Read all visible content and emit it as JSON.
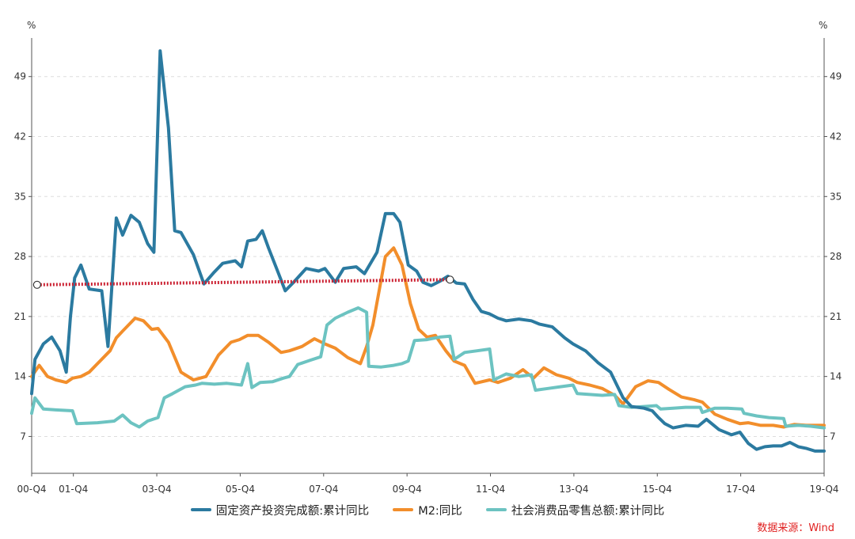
{
  "chart_data": {
    "type": "line",
    "unit_label_left": "%",
    "unit_label_right": "%",
    "x_tick_labels": [
      "00-Q4",
      "01-Q4",
      "03-Q4",
      "05-Q4",
      "07-Q4",
      "09-Q4",
      "11-Q4",
      "13-Q4",
      "15-Q4",
      "17-Q4",
      "19-Q4"
    ],
    "x_tick_dates": [
      2000.92,
      2001.92,
      2003.92,
      2005.92,
      2007.92,
      2009.92,
      2011.92,
      2013.92,
      2015.92,
      2017.92,
      2019.92
    ],
    "xlim": [
      2000.92,
      2019.92
    ],
    "ylim": [
      2.7,
      53.5
    ],
    "y_ticks": [
      7,
      14,
      21,
      28,
      35,
      42,
      49
    ],
    "grid": "horizontal dashed",
    "legend_position": "bottom",
    "source_note": "数据来源：Wind",
    "series": [
      {
        "name": "固定资产投资完成额:累计同比",
        "color": "#2b7aa0",
        "points": [
          [
            2000.92,
            12
          ],
          [
            2001.0,
            16
          ],
          [
            2001.2,
            17.8
          ],
          [
            2001.4,
            18.6
          ],
          [
            2001.6,
            17
          ],
          [
            2001.75,
            14.5
          ],
          [
            2001.85,
            21
          ],
          [
            2001.95,
            25.5
          ],
          [
            2002.1,
            27
          ],
          [
            2002.3,
            24.2
          ],
          [
            2002.6,
            24
          ],
          [
            2002.75,
            17.5
          ],
          [
            2002.95,
            32.5
          ],
          [
            2003.1,
            30.5
          ],
          [
            2003.3,
            32.8
          ],
          [
            2003.5,
            32
          ],
          [
            2003.7,
            29.5
          ],
          [
            2003.85,
            28.5
          ],
          [
            2004.0,
            52
          ],
          [
            2004.2,
            43
          ],
          [
            2004.35,
            31
          ],
          [
            2004.5,
            30.8
          ],
          [
            2004.8,
            28.2
          ],
          [
            2005.05,
            24.8
          ],
          [
            2005.3,
            26.2
          ],
          [
            2005.5,
            27.2
          ],
          [
            2005.8,
            27.5
          ],
          [
            2005.95,
            26.8
          ],
          [
            2006.1,
            29.8
          ],
          [
            2006.3,
            30
          ],
          [
            2006.45,
            31
          ],
          [
            2006.6,
            29
          ],
          [
            2006.8,
            26.5
          ],
          [
            2007.0,
            24
          ],
          [
            2007.2,
            25
          ],
          [
            2007.5,
            26.6
          ],
          [
            2007.8,
            26.3
          ],
          [
            2007.95,
            26.6
          ],
          [
            2008.2,
            25
          ],
          [
            2008.4,
            26.6
          ],
          [
            2008.7,
            26.8
          ],
          [
            2008.9,
            26
          ],
          [
            2009.2,
            28.5
          ],
          [
            2009.4,
            33
          ],
          [
            2009.6,
            33
          ],
          [
            2009.75,
            32
          ],
          [
            2009.95,
            27
          ],
          [
            2010.15,
            26.3
          ],
          [
            2010.3,
            25
          ],
          [
            2010.5,
            24.6
          ],
          [
            2010.7,
            25.1
          ],
          [
            2010.9,
            25.7
          ],
          [
            2011.1,
            24.9
          ],
          [
            2011.3,
            24.8
          ],
          [
            2011.5,
            23
          ],
          [
            2011.7,
            21.6
          ],
          [
            2011.9,
            21.3
          ],
          [
            2012.1,
            20.8
          ],
          [
            2012.3,
            20.5
          ],
          [
            2012.6,
            20.7
          ],
          [
            2012.9,
            20.5
          ],
          [
            2013.1,
            20.1
          ],
          [
            2013.4,
            19.8
          ],
          [
            2013.7,
            18.5
          ],
          [
            2013.9,
            17.8
          ],
          [
            2014.2,
            17
          ],
          [
            2014.5,
            15.6
          ],
          [
            2014.8,
            14.5
          ],
          [
            2015.1,
            11.5
          ],
          [
            2015.3,
            10.5
          ],
          [
            2015.6,
            10.3
          ],
          [
            2015.8,
            10
          ],
          [
            2015.95,
            9.2
          ],
          [
            2016.1,
            8.5
          ],
          [
            2016.3,
            8
          ],
          [
            2016.6,
            8.3
          ],
          [
            2016.9,
            8.2
          ],
          [
            2017.1,
            9
          ],
          [
            2017.4,
            7.8
          ],
          [
            2017.7,
            7.2
          ],
          [
            2017.9,
            7.5
          ],
          [
            2018.1,
            6.2
          ],
          [
            2018.3,
            5.5
          ],
          [
            2018.5,
            5.8
          ],
          [
            2018.7,
            5.9
          ],
          [
            2018.9,
            5.9
          ],
          [
            2019.1,
            6.3
          ],
          [
            2019.3,
            5.8
          ],
          [
            2019.5,
            5.6
          ],
          [
            2019.7,
            5.3
          ],
          [
            2019.92,
            5.3
          ]
        ]
      },
      {
        "name": "M2:同比",
        "color": "#f28e2b",
        "points": [
          [
            2000.92,
            14
          ],
          [
            2001.1,
            15.3
          ],
          [
            2001.3,
            14
          ],
          [
            2001.5,
            13.6
          ],
          [
            2001.75,
            13.3
          ],
          [
            2001.9,
            13.8
          ],
          [
            2002.1,
            14
          ],
          [
            2002.3,
            14.5
          ],
          [
            2002.5,
            15.5
          ],
          [
            2002.8,
            17
          ],
          [
            2002.95,
            18.5
          ],
          [
            2003.1,
            19.3
          ],
          [
            2003.4,
            20.8
          ],
          [
            2003.6,
            20.5
          ],
          [
            2003.8,
            19.5
          ],
          [
            2003.95,
            19.6
          ],
          [
            2004.2,
            18
          ],
          [
            2004.5,
            14.5
          ],
          [
            2004.8,
            13.6
          ],
          [
            2005.1,
            14
          ],
          [
            2005.4,
            16.5
          ],
          [
            2005.7,
            18
          ],
          [
            2005.9,
            18.3
          ],
          [
            2006.1,
            18.8
          ],
          [
            2006.35,
            18.8
          ],
          [
            2006.6,
            18
          ],
          [
            2006.9,
            16.8
          ],
          [
            2007.1,
            17
          ],
          [
            2007.4,
            17.5
          ],
          [
            2007.7,
            18.4
          ],
          [
            2007.95,
            17.8
          ],
          [
            2008.2,
            17.3
          ],
          [
            2008.5,
            16.2
          ],
          [
            2008.8,
            15.5
          ],
          [
            2008.95,
            17.5
          ],
          [
            2009.1,
            20
          ],
          [
            2009.4,
            28
          ],
          [
            2009.6,
            29
          ],
          [
            2009.8,
            27
          ],
          [
            2010.0,
            22.5
          ],
          [
            2010.2,
            19.5
          ],
          [
            2010.4,
            18.6
          ],
          [
            2010.6,
            18.8
          ],
          [
            2010.85,
            17
          ],
          [
            2011.05,
            15.8
          ],
          [
            2011.3,
            15.3
          ],
          [
            2011.55,
            13.2
          ],
          [
            2011.9,
            13.6
          ],
          [
            2012.1,
            13.3
          ],
          [
            2012.4,
            13.8
          ],
          [
            2012.7,
            14.8
          ],
          [
            2012.95,
            13.8
          ],
          [
            2013.2,
            15
          ],
          [
            2013.5,
            14.2
          ],
          [
            2013.8,
            13.8
          ],
          [
            2014.0,
            13.3
          ],
          [
            2014.3,
            13
          ],
          [
            2014.6,
            12.6
          ],
          [
            2014.9,
            11.8
          ],
          [
            2015.1,
            10.8
          ],
          [
            2015.4,
            12.8
          ],
          [
            2015.7,
            13.5
          ],
          [
            2015.95,
            13.3
          ],
          [
            2016.2,
            12.5
          ],
          [
            2016.5,
            11.6
          ],
          [
            2016.8,
            11.3
          ],
          [
            2017.0,
            11
          ],
          [
            2017.3,
            9.6
          ],
          [
            2017.6,
            9
          ],
          [
            2017.9,
            8.5
          ],
          [
            2018.1,
            8.6
          ],
          [
            2018.4,
            8.3
          ],
          [
            2018.7,
            8.3
          ],
          [
            2018.95,
            8.1
          ],
          [
            2019.2,
            8.4
          ],
          [
            2019.5,
            8.3
          ],
          [
            2019.92,
            8.3
          ]
        ]
      },
      {
        "name": "社会消费品零售总额:累计同比",
        "color": "#6cc3c1",
        "points": [
          [
            2000.92,
            9.7
          ],
          [
            2001.0,
            11.5
          ],
          [
            2001.2,
            10.2
          ],
          [
            2001.5,
            10.1
          ],
          [
            2001.9,
            10
          ],
          [
            2002.0,
            8.5
          ],
          [
            2002.5,
            8.6
          ],
          [
            2002.9,
            8.8
          ],
          [
            2003.1,
            9.5
          ],
          [
            2003.3,
            8.6
          ],
          [
            2003.5,
            8.1
          ],
          [
            2003.7,
            8.8
          ],
          [
            2003.95,
            9.2
          ],
          [
            2004.1,
            11.5
          ],
          [
            2004.3,
            12
          ],
          [
            2004.6,
            12.8
          ],
          [
            2004.85,
            13
          ],
          [
            2005.0,
            13.2
          ],
          [
            2005.3,
            13.1
          ],
          [
            2005.6,
            13.2
          ],
          [
            2005.95,
            13
          ],
          [
            2006.1,
            15.5
          ],
          [
            2006.2,
            12.7
          ],
          [
            2006.4,
            13.3
          ],
          [
            2006.7,
            13.4
          ],
          [
            2006.95,
            13.8
          ],
          [
            2007.1,
            14
          ],
          [
            2007.3,
            15.4
          ],
          [
            2007.6,
            15.9
          ],
          [
            2007.85,
            16.3
          ],
          [
            2008.0,
            20
          ],
          [
            2008.2,
            20.8
          ],
          [
            2008.5,
            21.5
          ],
          [
            2008.75,
            22
          ],
          [
            2008.95,
            21.5
          ],
          [
            2009.0,
            15.2
          ],
          [
            2009.3,
            15.1
          ],
          [
            2009.6,
            15.3
          ],
          [
            2009.8,
            15.5
          ],
          [
            2009.95,
            15.8
          ],
          [
            2010.1,
            18.2
          ],
          [
            2010.4,
            18.3
          ],
          [
            2010.7,
            18.6
          ],
          [
            2010.95,
            18.7
          ],
          [
            2011.05,
            16
          ],
          [
            2011.3,
            16.8
          ],
          [
            2011.6,
            17
          ],
          [
            2011.9,
            17.2
          ],
          [
            2012.0,
            13.6
          ],
          [
            2012.3,
            14.3
          ],
          [
            2012.6,
            14
          ],
          [
            2012.9,
            14.2
          ],
          [
            2013.0,
            12.4
          ],
          [
            2013.3,
            12.6
          ],
          [
            2013.6,
            12.8
          ],
          [
            2013.9,
            13
          ],
          [
            2014.0,
            12
          ],
          [
            2014.3,
            11.9
          ],
          [
            2014.6,
            11.8
          ],
          [
            2014.9,
            11.9
          ],
          [
            2015.0,
            10.6
          ],
          [
            2015.3,
            10.4
          ],
          [
            2015.6,
            10.5
          ],
          [
            2015.9,
            10.6
          ],
          [
            2016.0,
            10.2
          ],
          [
            2016.3,
            10.3
          ],
          [
            2016.6,
            10.4
          ],
          [
            2016.95,
            10.4
          ],
          [
            2017.0,
            9.8
          ],
          [
            2017.3,
            10.3
          ],
          [
            2017.6,
            10.3
          ],
          [
            2017.95,
            10.2
          ],
          [
            2018.0,
            9.7
          ],
          [
            2018.3,
            9.4
          ],
          [
            2018.6,
            9.2
          ],
          [
            2018.95,
            9.1
          ],
          [
            2019.0,
            8.2
          ],
          [
            2019.3,
            8.3
          ],
          [
            2019.6,
            8.2
          ],
          [
            2019.92,
            8
          ]
        ]
      }
    ],
    "annotation_line": {
      "color": "#cc2233",
      "style": "dotted",
      "points": [
        [
          2001.05,
          24.7
        ],
        [
          2010.95,
          25.3
        ]
      ]
    }
  }
}
